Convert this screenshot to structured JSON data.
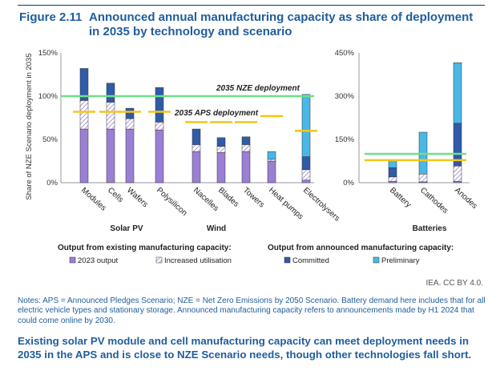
{
  "figure": {
    "number": "Figure 2.11",
    "title": "Announced annual manufacturing capacity as share of deployment in 2035 by technology and scenario"
  },
  "colors": {
    "output_2023": "#9b7fd4",
    "increased_utilisation": "#ffffff",
    "hatch": "#9b7fd4",
    "committed": "#2f5ba8",
    "preliminary": "#49b8e6",
    "nze_line": "#6fe08a",
    "aps_line": "#f5c518",
    "axis": "#999999",
    "title_blue": "#1f5d9c"
  },
  "chart_data": [
    {
      "type": "bar",
      "stacked": true,
      "ylabel": "Share of NZE Scenario deployment in 2035",
      "ylim": [
        0,
        150
      ],
      "yticks": [
        "0%",
        "50%",
        "100%",
        "150%"
      ],
      "group_labels": [
        "Solar PV",
        "Wind",
        "",
        ""
      ],
      "categories": [
        "Modules",
        "Cells",
        "Wafers",
        "Polysilicon",
        "Nacelles",
        "Blades",
        "Towers",
        "Heat pumps",
        "Electrolysers"
      ],
      "series": [
        {
          "name": "2023 output",
          "values": [
            62,
            62,
            62,
            61,
            36,
            35,
            36,
            25,
            3
          ]
        },
        {
          "name": "Increased utilisation",
          "values": [
            33,
            31,
            12,
            9,
            8,
            7,
            8,
            2,
            12
          ]
        },
        {
          "name": "Committed",
          "values": [
            37,
            22,
            12,
            40,
            18,
            10,
            9,
            0,
            15
          ]
        },
        {
          "name": "Preliminary",
          "values": [
            0,
            0,
            0,
            0,
            0,
            0,
            0,
            9,
            72
          ]
        }
      ],
      "aps_values": [
        82,
        82,
        82,
        82,
        70,
        70,
        70,
        77,
        60
      ],
      "nze_value": 100,
      "annotations": [
        "2035 NZE deployment",
        "2035 APS deployment"
      ]
    },
    {
      "type": "bar",
      "stacked": true,
      "ylim": [
        0,
        450
      ],
      "yticks": [
        "0%",
        "150%",
        "300%",
        "450%"
      ],
      "group_label": "Batteries",
      "categories": [
        "Battery",
        "Cathodes",
        "Anodes"
      ],
      "series": [
        {
          "name": "2023 output",
          "values": [
            5,
            3,
            5
          ]
        },
        {
          "name": "Increased utilisation",
          "values": [
            15,
            27,
            53
          ]
        },
        {
          "name": "Committed",
          "values": [
            32,
            0,
            148
          ]
        },
        {
          "name": "Preliminary",
          "values": [
            28,
            145,
            210
          ]
        }
      ],
      "aps_value": 78,
      "nze_value": 100
    }
  ],
  "legend": {
    "existing_heading": "Output from existing manufacturing capacity:",
    "announced_heading": "Output from announced manufacturing capacity:",
    "items": [
      "2023 output",
      "Increased utilisation",
      "Committed",
      "Preliminary"
    ]
  },
  "source": "IEA. CC BY 4.0.",
  "notes": "Notes: APS = Announced Pledges Scenario; NZE = Net Zero Emissions by 2050 Scenario. Battery demand here includes that for all electric vehicle types and stationary storage. Announced manufacturing capacity refers to announcements made by H1 2024 that could come online by 2030.",
  "key_message": "Existing solar PV module and cell manufacturing capacity can meet deployment needs in 2035 in the APS and is close to NZE Scenario needs, though other technologies fall short."
}
